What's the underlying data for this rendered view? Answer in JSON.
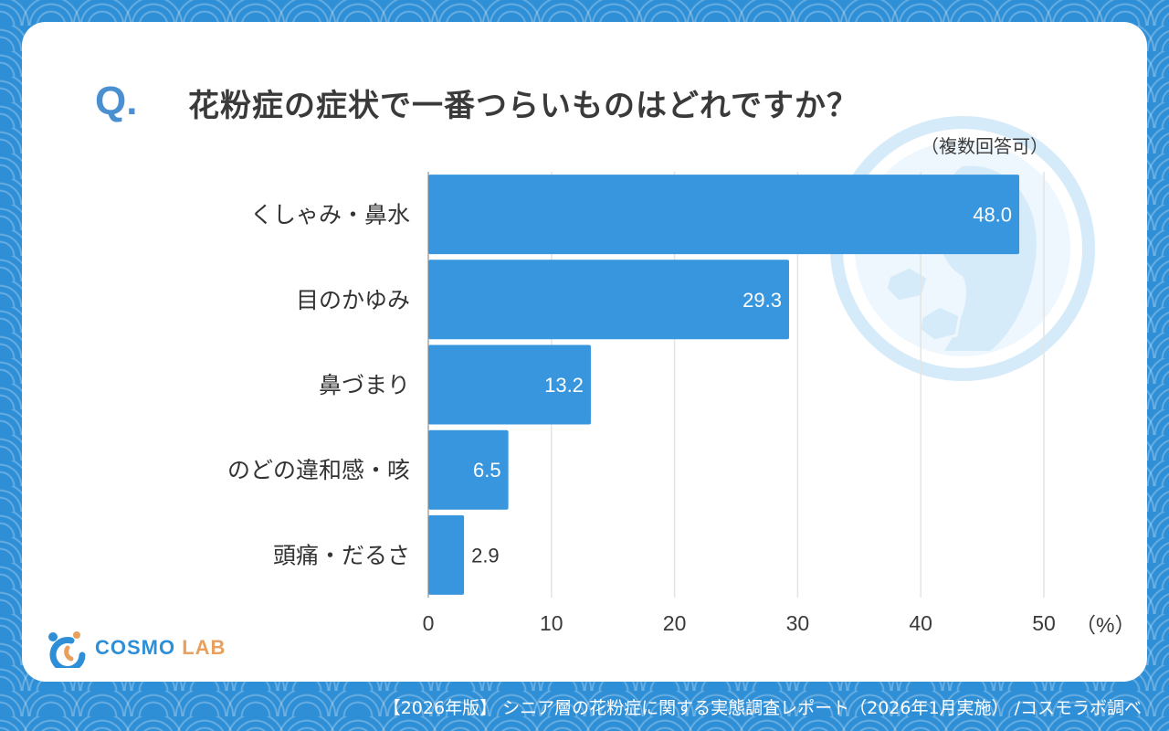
{
  "question": {
    "mark": "Q.",
    "title": "花粉症の症状で一番つらいものはどれですか？",
    "note": "（複数回答可）"
  },
  "chart_data": {
    "type": "bar",
    "orientation": "horizontal",
    "categories": [
      "くしゃみ・鼻水",
      "目のかゆみ",
      "鼻づまり",
      "のどの違和感・咳",
      "頭痛・だるさ"
    ],
    "values": [
      48.0,
      29.3,
      13.2,
      6.5,
      2.9
    ],
    "value_labels": [
      "48.0",
      "29.3",
      "13.2",
      "6.5",
      "2.9"
    ],
    "xlim": [
      0,
      50
    ],
    "x_ticks": [
      0,
      10,
      20,
      30,
      40,
      50
    ],
    "unit_label": "（%）",
    "bar_color": "#3896de",
    "grid": true
  },
  "logo": {
    "part1": "COSMO ",
    "part2": "LAB"
  },
  "footer": "【2026年版】 シニア層の花粉症に関する実態調査レポート（2026年1月実施） /コスモラボ調べ",
  "colors": {
    "background": "#2f8fd6",
    "card": "#ffffff",
    "accent": "#4a8fcf",
    "logo_orange": "#e8a05c",
    "watermark": "#d6ebfa"
  }
}
